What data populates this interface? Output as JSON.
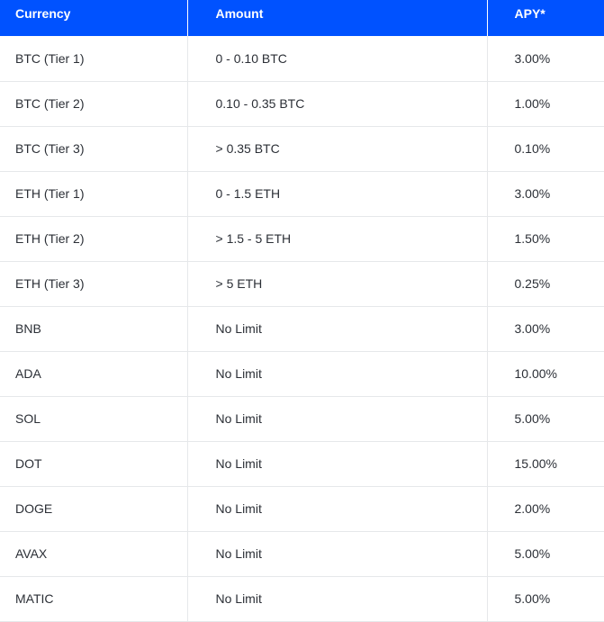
{
  "table": {
    "headers": {
      "currency": "Currency",
      "amount": "Amount",
      "apy": "APY*"
    },
    "rows": [
      {
        "currency": "BTC (Tier 1)",
        "amount": "0 - 0.10 BTC",
        "apy": "3.00%"
      },
      {
        "currency": "BTC (Tier 2)",
        "amount": "0.10 - 0.35 BTC",
        "apy": "1.00%"
      },
      {
        "currency": "BTC (Tier 3)",
        "amount": "> 0.35 BTC",
        "apy": "0.10%"
      },
      {
        "currency": "ETH (Tier 1)",
        "amount": "0 - 1.5 ETH",
        "apy": "3.00%"
      },
      {
        "currency": "ETH (Tier 2)",
        "amount": "> 1.5 - 5 ETH",
        "apy": "1.50%"
      },
      {
        "currency": "ETH (Tier 3)",
        "amount": "> 5 ETH",
        "apy": "0.25%"
      },
      {
        "currency": "BNB",
        "amount": "No Limit",
        "apy": "3.00%"
      },
      {
        "currency": "ADA",
        "amount": "No Limit",
        "apy": "10.00%"
      },
      {
        "currency": "SOL",
        "amount": "No Limit",
        "apy": "5.00%"
      },
      {
        "currency": "DOT",
        "amount": "No Limit",
        "apy": "15.00%"
      },
      {
        "currency": "DOGE",
        "amount": "No Limit",
        "apy": "2.00%"
      },
      {
        "currency": "AVAX",
        "amount": "No Limit",
        "apy": "5.00%"
      },
      {
        "currency": "MATIC",
        "amount": "No Limit",
        "apy": "5.00%"
      }
    ]
  },
  "colors": {
    "header_background": "#0052ff",
    "header_text": "#ffffff",
    "row_divider": "#e6e8ea"
  }
}
